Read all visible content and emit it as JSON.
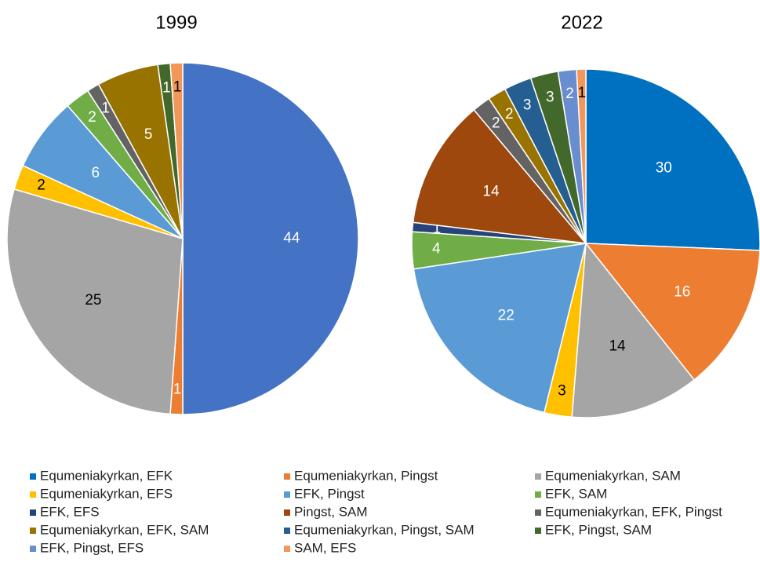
{
  "chart_data": [
    {
      "type": "pie",
      "title": "1999",
      "values": [
        44,
        1,
        25,
        2,
        6,
        2,
        null,
        null,
        1,
        5,
        null,
        1,
        null,
        1
      ],
      "colors": [
        "#4472C4",
        "#ED7D31",
        "#A5A5A5",
        "#FFC000",
        "#5B9BD5",
        "#70AD47",
        "#264478",
        "#9E480E",
        "#636363",
        "#997300",
        "#255E91",
        "#43682B",
        "#698ED0",
        "#F1975A"
      ]
    },
    {
      "type": "pie",
      "title": "2022",
      "values": [
        30,
        16,
        14,
        3,
        22,
        4,
        1,
        14,
        2,
        2,
        3,
        3,
        2,
        1
      ],
      "colors": [
        "#0070C0",
        "#ED7D31",
        "#A5A5A5",
        "#FFC000",
        "#5B9BD5",
        "#70AD47",
        "#264478",
        "#9E480E",
        "#636363",
        "#997300",
        "#255E91",
        "#43682B",
        "#698ED0",
        "#F1975A"
      ]
    }
  ],
  "legend": {
    "labels": [
      "Equmeniakyrkan, EFK",
      "Equmeniakyrkan, Pingst",
      "Equmeniakyrkan, SAM",
      "Equmeniakyrkan, EFS",
      "EFK, Pingst",
      "EFK, SAM",
      "EFK, EFS",
      "Pingst, SAM",
      "Equmeniakyrkan, EFK, Pingst",
      "Equmeniakyrkan, EFK, SAM",
      "Equmeniakyrkan, Pingst, SAM",
      "EFK, Pingst, SAM",
      "EFK, Pingst, EFS",
      "SAM, EFS"
    ],
    "colors": [
      "#0070C0",
      "#ED7D31",
      "#A5A5A5",
      "#FFC000",
      "#5B9BD5",
      "#70AD47",
      "#264478",
      "#9E480E",
      "#636363",
      "#997300",
      "#255E91",
      "#43682B",
      "#698ED0",
      "#F1975A"
    ]
  }
}
